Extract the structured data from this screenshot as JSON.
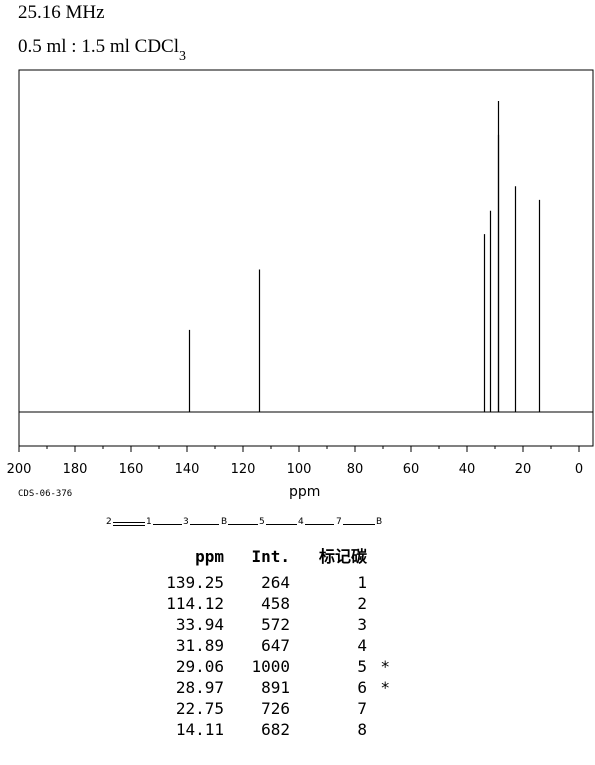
{
  "header": {
    "frequency": "25.16 MHz",
    "solvent": "0.5 ml : 1.5 ml CDCl",
    "solvent_subscript": "3"
  },
  "sample_code": "CDS-06-376",
  "structure": {
    "labels": [
      "2",
      "1",
      "3",
      "B",
      "5",
      "4",
      "7",
      "B"
    ]
  },
  "chart_data": {
    "type": "line",
    "xlabel": "ppm",
    "xlim": [
      200,
      0
    ],
    "xticks": [
      200,
      180,
      160,
      140,
      120,
      100,
      80,
      60,
      40,
      20,
      0
    ],
    "x_reversed": true,
    "peaks": [
      {
        "ppm": 139.25,
        "intensity": 264
      },
      {
        "ppm": 114.12,
        "intensity": 458
      },
      {
        "ppm": 33.94,
        "intensity": 572
      },
      {
        "ppm": 31.89,
        "intensity": 647
      },
      {
        "ppm": 29.06,
        "intensity": 1000
      },
      {
        "ppm": 28.97,
        "intensity": 891
      },
      {
        "ppm": 22.75,
        "intensity": 726
      },
      {
        "ppm": 14.11,
        "intensity": 682
      }
    ]
  },
  "table": {
    "headers": {
      "ppm": "ppm",
      "int": "Int.",
      "assign": "标记碳"
    },
    "rows": [
      {
        "ppm": "139.25",
        "int": "264",
        "assign": "1",
        "mark": ""
      },
      {
        "ppm": "114.12",
        "int": "458",
        "assign": "2",
        "mark": ""
      },
      {
        "ppm": "33.94",
        "int": "572",
        "assign": "3",
        "mark": ""
      },
      {
        "ppm": "31.89",
        "int": "647",
        "assign": "4",
        "mark": ""
      },
      {
        "ppm": "29.06",
        "int": "1000",
        "assign": "5",
        "mark": "*"
      },
      {
        "ppm": "28.97",
        "int": "891",
        "assign": "6",
        "mark": "*"
      },
      {
        "ppm": "22.75",
        "int": "726",
        "assign": "7",
        "mark": ""
      },
      {
        "ppm": "14.11",
        "int": "682",
        "assign": "8",
        "mark": ""
      }
    ]
  }
}
